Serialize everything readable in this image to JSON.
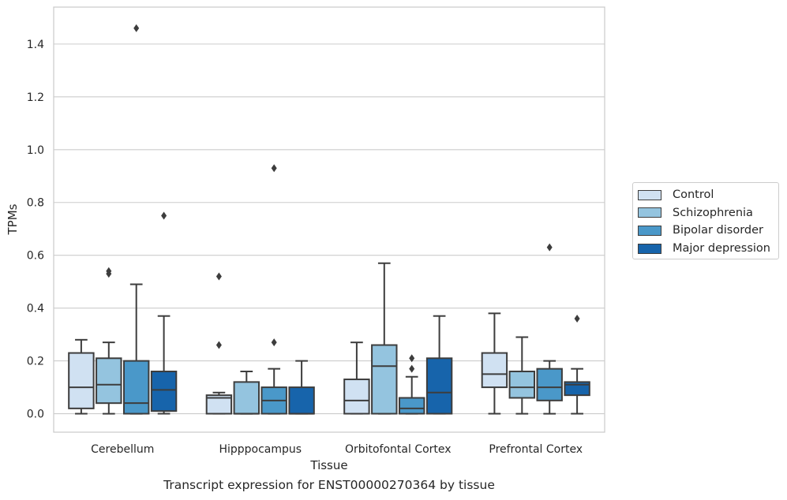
{
  "caption": "Transcript expression for ENST00000270364 by tissue",
  "chart_data": {
    "type": "box",
    "xlabel": "Tissue",
    "ylabel": "TPMs",
    "ylim": [
      -0.07,
      1.54
    ],
    "yticks": [
      "0.0",
      "0.2",
      "0.4",
      "0.6",
      "0.8",
      "1.0",
      "1.2",
      "1.4"
    ],
    "grid": true,
    "legend_position": "right",
    "categories": [
      "Cerebellum",
      "Hipppocampus",
      "Orbitofontal Cortex",
      "Prefrontal Cortex"
    ],
    "series": [
      {
        "name": "Control",
        "color": "#d0e1f2",
        "boxes": [
          {
            "whislo": 0.0,
            "q1": 0.02,
            "med": 0.1,
            "q3": 0.23,
            "whishi": 0.28,
            "fliers": []
          },
          {
            "whislo": 0.0,
            "q1": 0.0,
            "med": 0.06,
            "q3": 0.07,
            "whishi": 0.08,
            "fliers": [
              0.26,
              0.52
            ]
          },
          {
            "whislo": 0.0,
            "q1": 0.0,
            "med": 0.05,
            "q3": 0.13,
            "whishi": 0.27,
            "fliers": []
          },
          {
            "whislo": 0.0,
            "q1": 0.1,
            "med": 0.15,
            "q3": 0.23,
            "whishi": 0.38,
            "fliers": []
          }
        ]
      },
      {
        "name": "Schizophrenia",
        "color": "#94c4df",
        "boxes": [
          {
            "whislo": 0.0,
            "q1": 0.04,
            "med": 0.11,
            "q3": 0.21,
            "whishi": 0.27,
            "fliers": [
              0.53,
              0.54
            ]
          },
          {
            "whislo": 0.0,
            "q1": 0.0,
            "med": 0.0,
            "q3": 0.12,
            "whishi": 0.16,
            "fliers": []
          },
          {
            "whislo": 0.0,
            "q1": 0.0,
            "med": 0.18,
            "q3": 0.26,
            "whishi": 0.57,
            "fliers": []
          },
          {
            "whislo": 0.0,
            "q1": 0.06,
            "med": 0.1,
            "q3": 0.16,
            "whishi": 0.29,
            "fliers": []
          }
        ]
      },
      {
        "name": "Bipolar disorder",
        "color": "#4a98c9",
        "boxes": [
          {
            "whislo": 0.0,
            "q1": 0.0,
            "med": 0.04,
            "q3": 0.2,
            "whishi": 0.49,
            "fliers": [
              1.46
            ]
          },
          {
            "whislo": 0.0,
            "q1": 0.0,
            "med": 0.05,
            "q3": 0.1,
            "whishi": 0.17,
            "fliers": [
              0.27,
              0.93
            ]
          },
          {
            "whislo": 0.0,
            "q1": 0.0,
            "med": 0.02,
            "q3": 0.06,
            "whishi": 0.14,
            "fliers": [
              0.17,
              0.21
            ]
          },
          {
            "whislo": 0.0,
            "q1": 0.05,
            "med": 0.1,
            "q3": 0.17,
            "whishi": 0.2,
            "fliers": [
              0.63
            ]
          }
        ]
      },
      {
        "name": "Major depression",
        "color": "#1764ab",
        "boxes": [
          {
            "whislo": 0.0,
            "q1": 0.01,
            "med": 0.09,
            "q3": 0.16,
            "whishi": 0.37,
            "fliers": [
              0.75
            ]
          },
          {
            "whislo": 0.0,
            "q1": 0.0,
            "med": 0.0,
            "q3": 0.1,
            "whishi": 0.2,
            "fliers": []
          },
          {
            "whislo": 0.0,
            "q1": 0.0,
            "med": 0.08,
            "q3": 0.21,
            "whishi": 0.37,
            "fliers": []
          },
          {
            "whislo": 0.0,
            "q1": 0.07,
            "med": 0.11,
            "q3": 0.12,
            "whishi": 0.17,
            "fliers": [
              0.36
            ]
          }
        ]
      }
    ]
  }
}
